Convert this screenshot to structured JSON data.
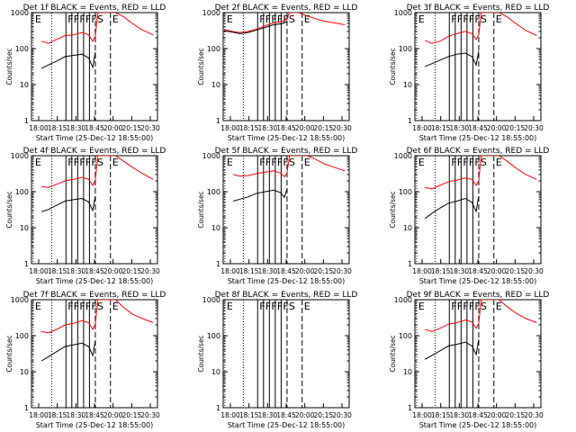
{
  "layout": {
    "rows": 3,
    "cols": 3
  },
  "colors": {
    "events": "#000000",
    "lld": "#ff0000",
    "axes": "#000000",
    "background": "#ffffff"
  },
  "common": {
    "ylabel": "Counts/sec",
    "xlabel": "Start Time (25-Dec-12 18:55:00)",
    "xtick_labels": [
      "18:00",
      "18:15",
      "18:30",
      "18:45",
      "20:00",
      "20:15",
      "20:30"
    ],
    "ytick_labels": [
      "1",
      "10",
      "100",
      "1000"
    ],
    "yscale": "log",
    "ylim": [
      1,
      1000
    ]
  },
  "chart_data": [
    {
      "type": "line",
      "title": "Det 1f BLACK = Events, RED = LLD",
      "markers": [
        {
          "x": 0.02,
          "label": "E",
          "style": "dotted"
        },
        {
          "x": 0.24,
          "label": "",
          "style": "dotted"
        },
        {
          "x": 0.41,
          "label": "F",
          "style": "solid"
        },
        {
          "x": 0.48,
          "label": "F",
          "style": "solid"
        },
        {
          "x": 0.55,
          "label": "F",
          "style": "solid"
        },
        {
          "x": 0.62,
          "label": "F",
          "style": "solid"
        },
        {
          "x": 0.69,
          "label": "F",
          "style": "solid"
        },
        {
          "x": 0.76,
          "label": "S",
          "style": "dashed"
        },
        {
          "x": 0.94,
          "label": "E",
          "style": "dashed"
        }
      ],
      "series": [
        {
          "color": "red",
          "x": [
            0.12,
            0.2,
            0.3,
            0.4,
            0.5,
            0.6,
            0.68,
            0.73,
            0.76,
            0.79,
            1.0,
            1.1,
            1.2,
            1.32,
            1.45
          ],
          "y": [
            160,
            140,
            180,
            230,
            240,
            280,
            240,
            160,
            220,
            1000,
            1000,
            760,
            500,
            330,
            240
          ]
        },
        {
          "color": "black",
          "x": [
            0.12,
            0.2,
            0.3,
            0.4,
            0.5,
            0.6,
            0.68,
            0.73,
            0.76
          ],
          "y": [
            28,
            35,
            45,
            60,
            65,
            70,
            55,
            30,
            80
          ]
        }
      ]
    },
    {
      "type": "line",
      "title": "Det 2f BLACK = Events, RED = LLD",
      "markers": [
        {
          "x": 0.02,
          "label": "E",
          "style": "dotted"
        },
        {
          "x": 0.24,
          "label": "",
          "style": "dotted"
        },
        {
          "x": 0.41,
          "label": "F",
          "style": "solid"
        },
        {
          "x": 0.48,
          "label": "F",
          "style": "solid"
        },
        {
          "x": 0.55,
          "label": "F",
          "style": "solid"
        },
        {
          "x": 0.62,
          "label": "F",
          "style": "solid"
        },
        {
          "x": 0.69,
          "label": "F",
          "style": "solid"
        },
        {
          "x": 0.76,
          "label": "S",
          "style": "dashed"
        },
        {
          "x": 0.94,
          "label": "E",
          "style": "dashed"
        }
      ],
      "series": [
        {
          "color": "red",
          "x": [
            0.01,
            0.1,
            0.2,
            0.3,
            0.4,
            0.5,
            0.6,
            0.7,
            0.76,
            0.79,
            0.9,
            1.0,
            1.1,
            1.2,
            1.32,
            1.45
          ],
          "y": [
            340,
            300,
            280,
            300,
            350,
            430,
            520,
            560,
            650,
            1000,
            1000,
            800,
            680,
            580,
            520,
            460
          ]
        },
        {
          "color": "black",
          "x": [
            0.01,
            0.1,
            0.2,
            0.3,
            0.4,
            0.5,
            0.6,
            0.7,
            0.76
          ],
          "y": [
            310,
            290,
            260,
            280,
            330,
            390,
            460,
            490,
            560
          ]
        }
      ]
    },
    {
      "type": "line",
      "title": "Det 3f BLACK = Events, RED = LLD",
      "markers": [
        {
          "x": 0.02,
          "label": "E",
          "style": "dotted"
        },
        {
          "x": 0.24,
          "label": "",
          "style": "dotted"
        },
        {
          "x": 0.41,
          "label": "F",
          "style": "solid"
        },
        {
          "x": 0.48,
          "label": "F",
          "style": "solid"
        },
        {
          "x": 0.55,
          "label": "F",
          "style": "solid"
        },
        {
          "x": 0.62,
          "label": "F",
          "style": "solid"
        },
        {
          "x": 0.69,
          "label": "F",
          "style": "solid"
        },
        {
          "x": 0.76,
          "label": "S",
          "style": "dashed"
        },
        {
          "x": 0.94,
          "label": "E",
          "style": "dashed"
        }
      ],
      "series": [
        {
          "color": "red",
          "x": [
            0.12,
            0.2,
            0.3,
            0.4,
            0.5,
            0.6,
            0.68,
            0.73,
            0.76,
            0.79,
            1.0,
            1.1,
            1.2,
            1.32,
            1.45
          ],
          "y": [
            170,
            140,
            160,
            220,
            260,
            300,
            260,
            180,
            240,
            1000,
            1000,
            760,
            500,
            320,
            230
          ]
        },
        {
          "color": "black",
          "x": [
            0.12,
            0.2,
            0.3,
            0.4,
            0.5,
            0.6,
            0.68,
            0.73,
            0.76
          ],
          "y": [
            32,
            38,
            48,
            60,
            70,
            75,
            60,
            35,
            85
          ]
        }
      ]
    },
    {
      "type": "line",
      "title": "Det 4f BLACK = Events, RED = LLD",
      "markers": [
        {
          "x": 0.02,
          "label": "E",
          "style": "dotted"
        },
        {
          "x": 0.24,
          "label": "",
          "style": "dotted"
        },
        {
          "x": 0.41,
          "label": "F",
          "style": "solid"
        },
        {
          "x": 0.48,
          "label": "F",
          "style": "solid"
        },
        {
          "x": 0.55,
          "label": "F",
          "style": "solid"
        },
        {
          "x": 0.62,
          "label": "F",
          "style": "solid"
        },
        {
          "x": 0.69,
          "label": "F",
          "style": "solid"
        },
        {
          "x": 0.76,
          "label": "S",
          "style": "dashed"
        },
        {
          "x": 0.94,
          "label": "E",
          "style": "dashed"
        }
      ],
      "series": [
        {
          "color": "red",
          "x": [
            0.12,
            0.2,
            0.3,
            0.4,
            0.5,
            0.6,
            0.68,
            0.73,
            0.76,
            0.79,
            1.0,
            1.1,
            1.2,
            1.32,
            1.45
          ],
          "y": [
            140,
            130,
            160,
            200,
            220,
            250,
            220,
            150,
            210,
            1000,
            1000,
            700,
            480,
            320,
            220
          ]
        },
        {
          "color": "black",
          "x": [
            0.12,
            0.2,
            0.3,
            0.4,
            0.5,
            0.6,
            0.68,
            0.73,
            0.76
          ],
          "y": [
            28,
            32,
            42,
            55,
            60,
            65,
            52,
            30,
            75
          ]
        }
      ]
    },
    {
      "type": "line",
      "title": "Det 5f BLACK = Events, RED = LLD",
      "markers": [
        {
          "x": 0.02,
          "label": "E",
          "style": "dotted"
        },
        {
          "x": 0.24,
          "label": "",
          "style": "dotted"
        },
        {
          "x": 0.41,
          "label": "F",
          "style": "solid"
        },
        {
          "x": 0.48,
          "label": "F",
          "style": "solid"
        },
        {
          "x": 0.55,
          "label": "F",
          "style": "solid"
        },
        {
          "x": 0.62,
          "label": "F",
          "style": "solid"
        },
        {
          "x": 0.69,
          "label": "F",
          "style": "solid"
        },
        {
          "x": 0.76,
          "label": "S",
          "style": "dashed"
        },
        {
          "x": 0.94,
          "label": "E",
          "style": "dashed"
        }
      ],
      "series": [
        {
          "color": "red",
          "x": [
            0.12,
            0.2,
            0.3,
            0.4,
            0.5,
            0.6,
            0.68,
            0.73,
            0.76,
            0.79,
            1.0,
            1.1,
            1.2,
            1.32,
            1.45
          ],
          "y": [
            300,
            270,
            280,
            320,
            350,
            380,
            330,
            260,
            330,
            1000,
            1000,
            800,
            600,
            480,
            380
          ]
        },
        {
          "color": "black",
          "x": [
            0.12,
            0.2,
            0.3,
            0.4,
            0.5,
            0.6,
            0.68,
            0.73,
            0.76
          ],
          "y": [
            55,
            62,
            72,
            90,
            100,
            110,
            95,
            70,
            120
          ]
        }
      ]
    },
    {
      "type": "line",
      "title": "Det 6f BLACK = Events, RED = LLD",
      "markers": [
        {
          "x": 0.02,
          "label": "E",
          "style": "dotted"
        },
        {
          "x": 0.24,
          "label": "",
          "style": "dotted"
        },
        {
          "x": 0.41,
          "label": "F",
          "style": "solid"
        },
        {
          "x": 0.48,
          "label": "F",
          "style": "solid"
        },
        {
          "x": 0.55,
          "label": "F",
          "style": "solid"
        },
        {
          "x": 0.62,
          "label": "F",
          "style": "solid"
        },
        {
          "x": 0.69,
          "label": "F",
          "style": "solid"
        },
        {
          "x": 0.76,
          "label": "S",
          "style": "dashed"
        },
        {
          "x": 0.94,
          "label": "E",
          "style": "dashed"
        }
      ],
      "series": [
        {
          "color": "red",
          "x": [
            0.12,
            0.2,
            0.3,
            0.4,
            0.5,
            0.6,
            0.68,
            0.73,
            0.76,
            0.79,
            1.0,
            1.1,
            1.2,
            1.32,
            1.45
          ],
          "y": [
            130,
            120,
            150,
            190,
            210,
            240,
            220,
            150,
            200,
            1000,
            1000,
            700,
            460,
            300,
            220
          ]
        },
        {
          "color": "black",
          "x": [
            0.12,
            0.2,
            0.3,
            0.4,
            0.5,
            0.6,
            0.68,
            0.73,
            0.76
          ],
          "y": [
            18,
            25,
            35,
            48,
            55,
            65,
            50,
            28,
            75
          ]
        }
      ]
    },
    {
      "type": "line",
      "title": "Det 7f BLACK = Events, RED = LLD",
      "markers": [
        {
          "x": 0.02,
          "label": "E",
          "style": "dotted"
        },
        {
          "x": 0.24,
          "label": "",
          "style": "dotted"
        },
        {
          "x": 0.41,
          "label": "F",
          "style": "solid"
        },
        {
          "x": 0.48,
          "label": "F",
          "style": "solid"
        },
        {
          "x": 0.55,
          "label": "F",
          "style": "solid"
        },
        {
          "x": 0.62,
          "label": "F",
          "style": "solid"
        },
        {
          "x": 0.69,
          "label": "F",
          "style": "solid"
        },
        {
          "x": 0.76,
          "label": "S",
          "style": "dashed"
        },
        {
          "x": 0.94,
          "label": "E",
          "style": "dashed"
        }
      ],
      "series": [
        {
          "color": "red",
          "x": [
            0.12,
            0.2,
            0.3,
            0.4,
            0.5,
            0.6,
            0.68,
            0.73,
            0.76,
            0.79,
            1.0,
            1.1,
            1.2,
            1.32,
            1.45
          ],
          "y": [
            130,
            120,
            150,
            200,
            220,
            260,
            230,
            150,
            210,
            1000,
            1000,
            600,
            400,
            300,
            230
          ]
        },
        {
          "color": "black",
          "x": [
            0.12,
            0.2,
            0.3,
            0.4,
            0.5,
            0.6,
            0.68,
            0.73,
            0.76
          ],
          "y": [
            20,
            26,
            36,
            50,
            56,
            62,
            50,
            28,
            72
          ]
        }
      ]
    },
    {
      "type": "line",
      "title": "Det 8f BLACK = Events, RED = LLD",
      "markers": [
        {
          "x": 0.02,
          "label": "E",
          "style": "dotted"
        },
        {
          "x": 0.24,
          "label": "",
          "style": "dotted"
        },
        {
          "x": 0.41,
          "label": "F",
          "style": "solid"
        },
        {
          "x": 0.48,
          "label": "F",
          "style": "solid"
        },
        {
          "x": 0.55,
          "label": "F",
          "style": "solid"
        },
        {
          "x": 0.62,
          "label": "F",
          "style": "solid"
        },
        {
          "x": 0.69,
          "label": "F",
          "style": "solid"
        },
        {
          "x": 0.76,
          "label": "S",
          "style": "dashed"
        },
        {
          "x": 0.94,
          "label": "E",
          "style": "dashed"
        }
      ],
      "series": []
    },
    {
      "type": "line",
      "title": "Det 9f BLACK = Events, RED = LLD",
      "markers": [
        {
          "x": 0.02,
          "label": "E",
          "style": "dotted"
        },
        {
          "x": 0.24,
          "label": "",
          "style": "dotted"
        },
        {
          "x": 0.41,
          "label": "F",
          "style": "solid"
        },
        {
          "x": 0.48,
          "label": "F",
          "style": "solid"
        },
        {
          "x": 0.55,
          "label": "F",
          "style": "solid"
        },
        {
          "x": 0.62,
          "label": "F",
          "style": "solid"
        },
        {
          "x": 0.69,
          "label": "F",
          "style": "solid"
        },
        {
          "x": 0.76,
          "label": "S",
          "style": "dashed"
        },
        {
          "x": 0.94,
          "label": "E",
          "style": "dashed"
        }
      ],
      "series": [
        {
          "color": "red",
          "x": [
            0.12,
            0.2,
            0.3,
            0.4,
            0.5,
            0.6,
            0.68,
            0.73,
            0.76,
            0.79,
            1.0,
            1.1,
            1.2,
            1.32,
            1.45
          ],
          "y": [
            150,
            130,
            160,
            210,
            230,
            270,
            240,
            160,
            220,
            1000,
            1000,
            640,
            430,
            300,
            230
          ]
        },
        {
          "color": "black",
          "x": [
            0.12,
            0.2,
            0.3,
            0.4,
            0.5,
            0.6,
            0.68,
            0.73,
            0.76
          ],
          "y": [
            22,
            28,
            38,
            52,
            58,
            66,
            52,
            30,
            78
          ]
        }
      ]
    }
  ]
}
